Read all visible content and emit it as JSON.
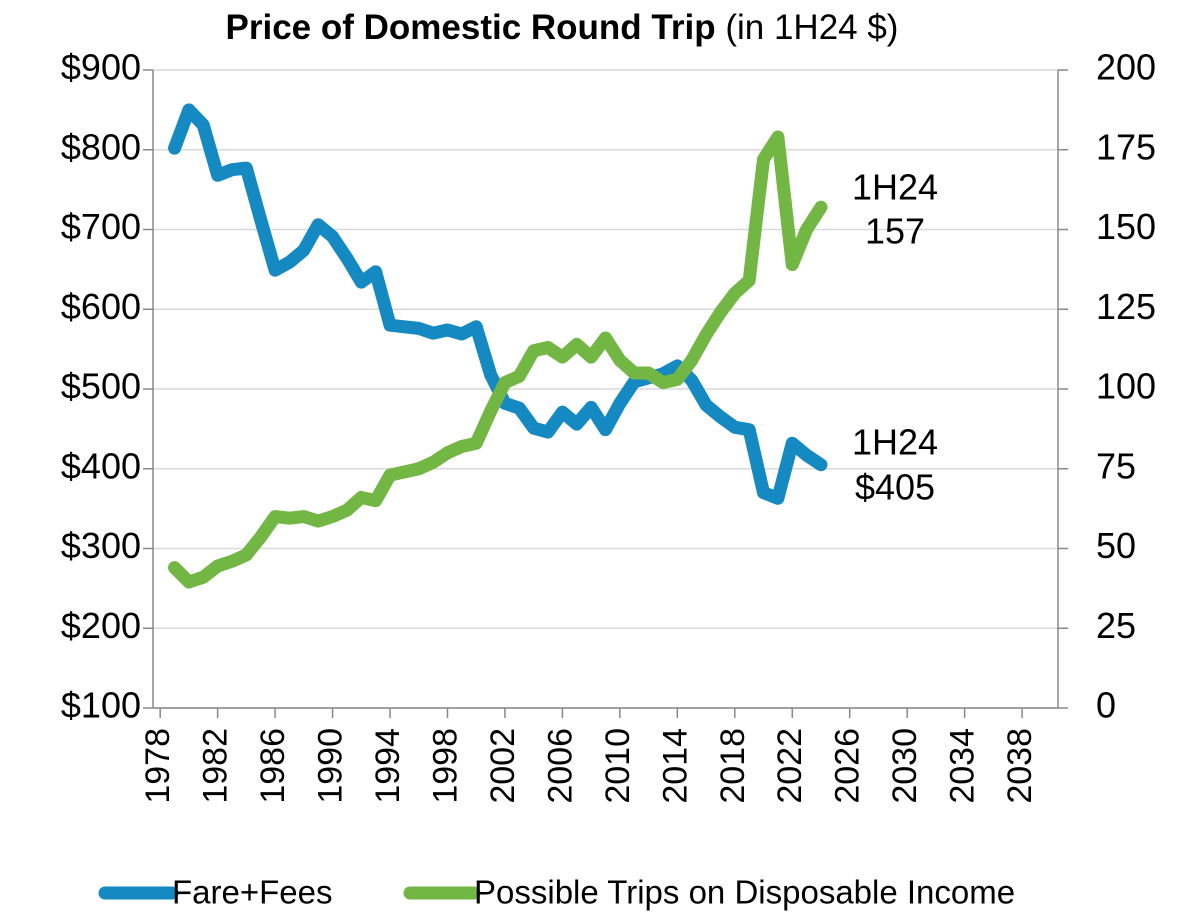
{
  "chart_data": {
    "type": "line",
    "title": "Price of Domestic Round Trip",
    "subtitle": "(in 1H24 $)",
    "x": [
      1979,
      1980,
      1981,
      1982,
      1983,
      1984,
      1985,
      1986,
      1987,
      1988,
      1989,
      1990,
      1991,
      1992,
      1993,
      1994,
      1995,
      1996,
      1997,
      1998,
      1999,
      2000,
      2001,
      2002,
      2003,
      2004,
      2005,
      2006,
      2007,
      2008,
      2009,
      2010,
      2011,
      2012,
      2013,
      2014,
      2015,
      2016,
      2017,
      2018,
      2019,
      2020,
      2021,
      2022,
      2023,
      2024
    ],
    "series": [
      {
        "name": "Fare+Fees",
        "color": "#1589c2",
        "values": [
          802,
          850,
          831,
          768,
          775,
          777,
          712,
          649,
          659,
          674,
          706,
          691,
          664,
          634,
          647,
          580,
          578,
          576,
          570,
          574,
          569,
          578,
          518,
          482,
          476,
          451,
          446,
          471,
          456,
          477,
          449,
          482,
          509,
          514,
          519,
          529,
          511,
          480,
          465,
          452,
          449,
          370,
          363,
          432,
          417,
          405
        ]
      },
      {
        "name": "Possible Trips on Disposable Income",
        "color": "#72b643",
        "axis": "y2",
        "values": [
          44,
          39.5,
          41,
          44.5,
          46,
          48,
          53.6,
          60,
          59.5,
          60,
          58.6,
          60,
          62,
          66,
          65,
          73,
          74,
          75,
          77,
          80,
          82,
          83,
          93,
          102,
          104,
          112,
          113,
          110,
          114,
          110,
          116,
          109,
          105,
          105,
          102,
          103,
          109,
          117,
          124,
          130,
          134,
          172,
          179,
          139,
          150,
          157
        ]
      }
    ],
    "xlim": [
      1977.5,
      2040.5
    ],
    "xticks": [
      1978,
      1982,
      1986,
      1990,
      1994,
      1998,
      2002,
      2006,
      2010,
      2014,
      2018,
      2022,
      2026,
      2030,
      2034,
      2038
    ],
    "ylim": [
      100,
      900
    ],
    "yticks": [
      {
        "value": 100,
        "label": "$100"
      },
      {
        "value": 200,
        "label": "$200"
      },
      {
        "value": 300,
        "label": "$300"
      },
      {
        "value": 400,
        "label": "$400"
      },
      {
        "value": 500,
        "label": "$500"
      },
      {
        "value": 600,
        "label": "$600"
      },
      {
        "value": 700,
        "label": "$700"
      },
      {
        "value": 800,
        "label": "$800"
      },
      {
        "value": 900,
        "label": "$900"
      }
    ],
    "y2lim": [
      0,
      200
    ],
    "y2ticks": [
      0,
      25,
      50,
      75,
      100,
      125,
      150,
      175,
      200
    ],
    "grid": true,
    "legend": "bottom",
    "annotations": [
      {
        "lines": [
          "1H24",
          "157"
        ]
      },
      {
        "lines": [
          "1H24",
          "$405"
        ]
      }
    ]
  }
}
